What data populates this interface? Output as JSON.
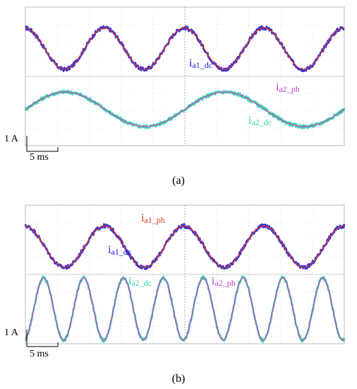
{
  "chart_data": [
    {
      "type": "line",
      "panel_label": "(a)",
      "current_scale": "1 A",
      "time_scale": "5 ms",
      "series": [
        {
          "name": "ia1_dc",
          "label_main": "i",
          "label_sub": "a1_dc",
          "color": "#1a1adc",
          "waveform": "sine",
          "periods_per_screen": 4,
          "amplitude_div": 1.2,
          "offset_div": 1.6
        },
        {
          "name": "ia1_ph",
          "color": "#e03a1a",
          "waveform": "sine",
          "periods_per_screen": 4,
          "amplitude_div": 1.2,
          "offset_div": 1.6
        },
        {
          "name": "ia2_ph",
          "label_main": "i",
          "label_sub": "a2_ph",
          "color": "#c040c8",
          "waveform": "sine",
          "periods_per_screen": 2,
          "amplitude_div": 1.0,
          "offset_div": -1.9
        },
        {
          "name": "ia2_dc",
          "label_main": "i",
          "label_sub": "a2_dc",
          "color": "#2fd8a0",
          "waveform": "sine",
          "periods_per_screen": 2,
          "amplitude_div": 1.0,
          "offset_div": -1.9
        }
      ]
    },
    {
      "type": "line",
      "panel_label": "(b)",
      "current_scale": "1 A",
      "time_scale": "5 ms",
      "series": [
        {
          "name": "ia1_ph",
          "label_main": "i",
          "label_sub": "a1_ph",
          "color": "#e03a1a",
          "waveform": "sine",
          "periods_per_screen": 4,
          "amplitude_div": 1.2,
          "offset_div": 1.6
        },
        {
          "name": "ia1_dc",
          "label_main": "i",
          "label_sub": "a1_dc",
          "color": "#1a1adc",
          "waveform": "sine",
          "periods_per_screen": 4,
          "amplitude_div": 1.2,
          "offset_div": 1.6
        },
        {
          "name": "ia2_dc",
          "label_main": "i",
          "label_sub": "a2_dc",
          "color": "#2fd8a0",
          "waveform": "sine",
          "periods_per_screen": 8,
          "amplitude_div": 1.8,
          "offset_div": -2.0
        },
        {
          "name": "ia2_ph",
          "label_main": "i",
          "label_sub": "a2_ph",
          "color": "#c040c8",
          "waveform": "sine",
          "periods_per_screen": 8,
          "amplitude_div": 1.8,
          "offset_div": -2.0
        }
      ]
    }
  ]
}
